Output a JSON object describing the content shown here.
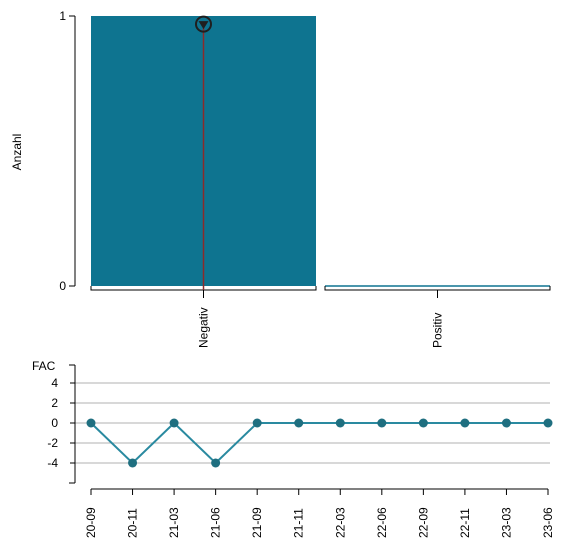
{
  "chart_data": [
    {
      "type": "bar",
      "ylabel": "Anzahl",
      "ylim": [
        0,
        1
      ],
      "yticks": [
        "0",
        "1"
      ],
      "categories": [
        "Negativ",
        "Positiv"
      ],
      "values": [
        1,
        0
      ],
      "marker": {
        "category": "Negativ",
        "value": 0.97
      },
      "colors": {
        "bar": "#0e7490",
        "marker": "#1f1f1f",
        "marker_line": "#8b2b2b",
        "axis": "#000000"
      }
    },
    {
      "type": "line",
      "ylabel": "FAC",
      "ylim": [
        -6,
        6
      ],
      "yticks": [
        "4",
        "2",
        "0",
        "-2",
        "-4"
      ],
      "ytick_values": [
        4,
        2,
        0,
        -2,
        -4
      ],
      "grid": true,
      "x": [
        "20-09",
        "20-11",
        "21-03",
        "21-06",
        "21-09",
        "21-11",
        "22-03",
        "22-06",
        "22-09",
        "22-11",
        "23-03",
        "23-06"
      ],
      "values": [
        0,
        -4,
        0,
        -4,
        0,
        0,
        0,
        0,
        0,
        0,
        0,
        0
      ],
      "colors": {
        "line": "#2a8aa0",
        "point": "#1f6f80",
        "grid": "#b0b0b0",
        "axis": "#000000"
      }
    }
  ]
}
